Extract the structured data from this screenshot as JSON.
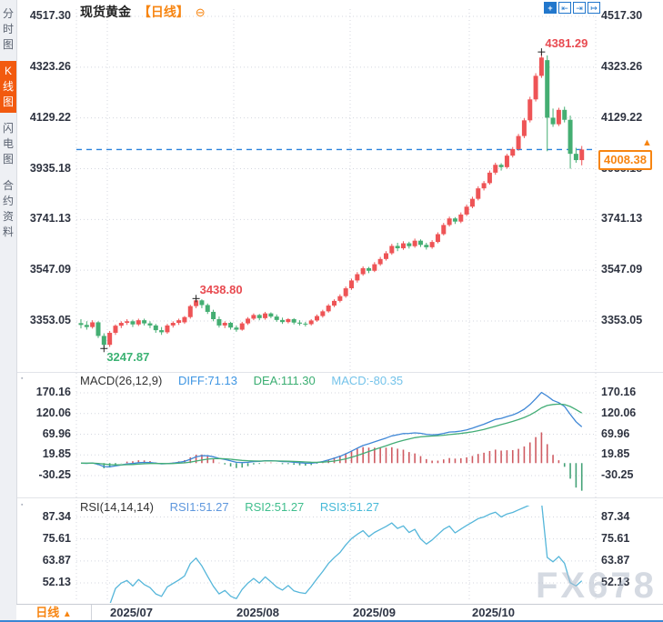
{
  "window": {
    "title": "现货黄金",
    "period_tag": "【日线】"
  },
  "sidebar": {
    "items": [
      {
        "label": "分时图",
        "active": false
      },
      {
        "label": "K线图",
        "active": true
      },
      {
        "label": "闪电图",
        "active": false
      },
      {
        "label": "合约资料",
        "active": false
      }
    ]
  },
  "toolbar": {
    "icons": [
      {
        "name": "move-crosshair-icon",
        "glyph": "+",
        "solid": true
      },
      {
        "name": "fit-width-icon",
        "glyph": "⇤",
        "solid": false
      },
      {
        "name": "fit-scale-icon",
        "glyph": "⇥",
        "solid": false
      },
      {
        "name": "exit-fullscreen-icon",
        "glyph": "↦",
        "solid": false
      }
    ]
  },
  "main_chart": {
    "y_axis": [
      "4517.30",
      "4323.26",
      "4129.22",
      "3935.18",
      "3741.13",
      "3547.09",
      "3353.05"
    ],
    "current_price": "4008.38"
  },
  "macd": {
    "header": {
      "name": "MACD(26,12,9)",
      "diff_label": "DIFF:71.13",
      "dea_label": "DEA:111.30",
      "macd_label": "MACD:-80.35"
    },
    "y_axis": [
      "170.16",
      "120.06",
      "69.96",
      "19.85",
      "-30.25"
    ]
  },
  "rsi": {
    "header": {
      "name": "RSI(14,14,14)",
      "rsi1_label": "RSI1:51.27",
      "rsi2_label": "RSI2:51.27",
      "rsi3_label": "RSI3:51.27"
    },
    "y_axis": [
      "87.34",
      "75.61",
      "63.87",
      "52.13"
    ]
  },
  "bottom_bar": {
    "period_label": "日线",
    "months": [
      "2025/07",
      "2025/08",
      "2025/09",
      "2025/10"
    ]
  },
  "watermark": "FX678",
  "colors": {
    "up": "#ee5456",
    "down": "#44ae72",
    "accent_orange": "#f78511",
    "active_tab": "#f25a0f",
    "diff_line": "#3f87d6",
    "dea_line": "#43ad76",
    "rsi_line": "#55b6da",
    "hist_pos": "#cf5b62",
    "hist_neg": "#44a277",
    "price_line": "#2a82dd",
    "grid": "#d4d7df",
    "toolbar_blue": "#2277cc",
    "annot_high": "#e84a50",
    "annot_low": "#3bb273"
  },
  "chart_data": {
    "type": "candlestick",
    "title": "现货黄金 日线 (Spot Gold, daily)",
    "x_axis_labels": [
      "2025/07",
      "2025/08",
      "2025/09",
      "2025/10"
    ],
    "price_axis": {
      "ticks": [
        4517.3,
        4323.26,
        4129.22,
        3935.18,
        3741.13,
        3547.09,
        3353.05
      ]
    },
    "current_price": 4008.38,
    "annotations": [
      {
        "index": 4,
        "type": "low",
        "text": "3247.87",
        "value": 3247.87
      },
      {
        "index": 20,
        "type": "high",
        "text": "3438.80",
        "value": 3438.8
      },
      {
        "index": 80,
        "type": "high",
        "text": "4381.29",
        "value": 4381.29
      }
    ],
    "indicators": {
      "macd": {
        "params": [
          26,
          12,
          9
        ],
        "diff": 71.13,
        "dea": 111.3,
        "macd": -80.35,
        "axis_ticks": [
          170.16,
          120.06,
          69.96,
          19.85,
          -30.25
        ]
      },
      "rsi": {
        "params": [
          14,
          14,
          14
        ],
        "rsi1": 51.27,
        "rsi2": 51.27,
        "rsi3": 51.27,
        "axis_ticks": [
          87.34,
          75.61,
          63.87,
          52.13
        ]
      }
    },
    "candles_format": [
      "open",
      "high",
      "low",
      "close"
    ],
    "candles": [
      [
        3345,
        3360,
        3325,
        3338
      ],
      [
        3338,
        3352,
        3320,
        3330
      ],
      [
        3330,
        3356,
        3324,
        3348
      ],
      [
        3348,
        3352,
        3288,
        3296
      ],
      [
        3296,
        3306,
        3247.87,
        3262
      ],
      [
        3262,
        3315,
        3254,
        3308
      ],
      [
        3308,
        3340,
        3300,
        3335
      ],
      [
        3335,
        3352,
        3326,
        3346
      ],
      [
        3346,
        3360,
        3338,
        3352
      ],
      [
        3352,
        3358,
        3330,
        3340
      ],
      [
        3340,
        3362,
        3334,
        3356
      ],
      [
        3356,
        3362,
        3336,
        3344
      ],
      [
        3344,
        3352,
        3326,
        3336
      ],
      [
        3336,
        3342,
        3308,
        3318
      ],
      [
        3318,
        3330,
        3300,
        3310
      ],
      [
        3310,
        3342,
        3304,
        3336
      ],
      [
        3336,
        3352,
        3328,
        3346
      ],
      [
        3346,
        3362,
        3338,
        3356
      ],
      [
        3348,
        3372,
        3342,
        3368
      ],
      [
        3368,
        3415,
        3362,
        3410
      ],
      [
        3410,
        3438.8,
        3402,
        3432
      ],
      [
        3432,
        3436,
        3402,
        3414
      ],
      [
        3414,
        3420,
        3380,
        3388
      ],
      [
        3388,
        3396,
        3352,
        3360
      ],
      [
        3360,
        3370,
        3328,
        3336
      ],
      [
        3336,
        3352,
        3326,
        3346
      ],
      [
        3346,
        3350,
        3320,
        3328
      ],
      [
        3328,
        3336,
        3312,
        3320
      ],
      [
        3320,
        3350,
        3316,
        3344
      ],
      [
        3344,
        3368,
        3338,
        3362
      ],
      [
        3362,
        3382,
        3356,
        3376
      ],
      [
        3376,
        3380,
        3356,
        3364
      ],
      [
        3364,
        3388,
        3358,
        3382
      ],
      [
        3382,
        3386,
        3364,
        3370
      ],
      [
        3370,
        3378,
        3350,
        3357
      ],
      [
        3357,
        3366,
        3342,
        3349
      ],
      [
        3349,
        3364,
        3344,
        3360
      ],
      [
        3360,
        3364,
        3340,
        3347
      ],
      [
        3347,
        3356,
        3336,
        3343
      ],
      [
        3343,
        3350,
        3332,
        3341
      ],
      [
        3341,
        3360,
        3336,
        3355
      ],
      [
        3355,
        3378,
        3350,
        3372
      ],
      [
        3372,
        3396,
        3366,
        3390
      ],
      [
        3390,
        3418,
        3385,
        3412
      ],
      [
        3412,
        3436,
        3406,
        3430
      ],
      [
        3430,
        3455,
        3424,
        3448
      ],
      [
        3448,
        3485,
        3442,
        3478
      ],
      [
        3478,
        3515,
        3472,
        3508
      ],
      [
        3508,
        3540,
        3500,
        3532
      ],
      [
        3532,
        3562,
        3526,
        3555
      ],
      [
        3555,
        3560,
        3536,
        3545
      ],
      [
        3545,
        3578,
        3540,
        3570
      ],
      [
        3570,
        3598,
        3564,
        3590
      ],
      [
        3590,
        3620,
        3584,
        3612
      ],
      [
        3612,
        3648,
        3606,
        3640
      ],
      [
        3640,
        3652,
        3620,
        3631
      ],
      [
        3631,
        3658,
        3625,
        3650
      ],
      [
        3650,
        3656,
        3630,
        3639
      ],
      [
        3639,
        3668,
        3633,
        3660
      ],
      [
        3660,
        3665,
        3636,
        3644
      ],
      [
        3644,
        3652,
        3626,
        3635
      ],
      [
        3635,
        3662,
        3629,
        3655
      ],
      [
        3655,
        3692,
        3650,
        3685
      ],
      [
        3685,
        3728,
        3680,
        3720
      ],
      [
        3720,
        3752,
        3714,
        3745
      ],
      [
        3745,
        3750,
        3724,
        3733
      ],
      [
        3733,
        3768,
        3727,
        3760
      ],
      [
        3760,
        3798,
        3754,
        3790
      ],
      [
        3790,
        3828,
        3784,
        3820
      ],
      [
        3820,
        3868,
        3814,
        3860
      ],
      [
        3860,
        3888,
        3852,
        3880
      ],
      [
        3880,
        3928,
        3874,
        3920
      ],
      [
        3920,
        3958,
        3912,
        3950
      ],
      [
        3950,
        3956,
        3928,
        3941
      ],
      [
        3941,
        3992,
        3935,
        3985
      ],
      [
        3985,
        4018,
        3978,
        4010
      ],
      [
        4010,
        4068,
        4004,
        4060
      ],
      [
        4060,
        4128,
        4052,
        4120
      ],
      [
        4120,
        4210,
        4112,
        4200
      ],
      [
        4200,
        4300,
        4192,
        4290
      ],
      [
        4290,
        4381.29,
        4282,
        4360
      ],
      [
        4350,
        4368,
        4002,
        4130
      ],
      [
        4130,
        4165,
        4095,
        4105
      ],
      [
        4105,
        4168,
        4098,
        4160
      ],
      [
        4160,
        4172,
        4112,
        4122
      ],
      [
        4122,
        4138,
        3935,
        3992
      ],
      [
        3992,
        4015,
        3958,
        3968
      ],
      [
        3968,
        4022,
        3948,
        4008.38
      ]
    ]
  }
}
